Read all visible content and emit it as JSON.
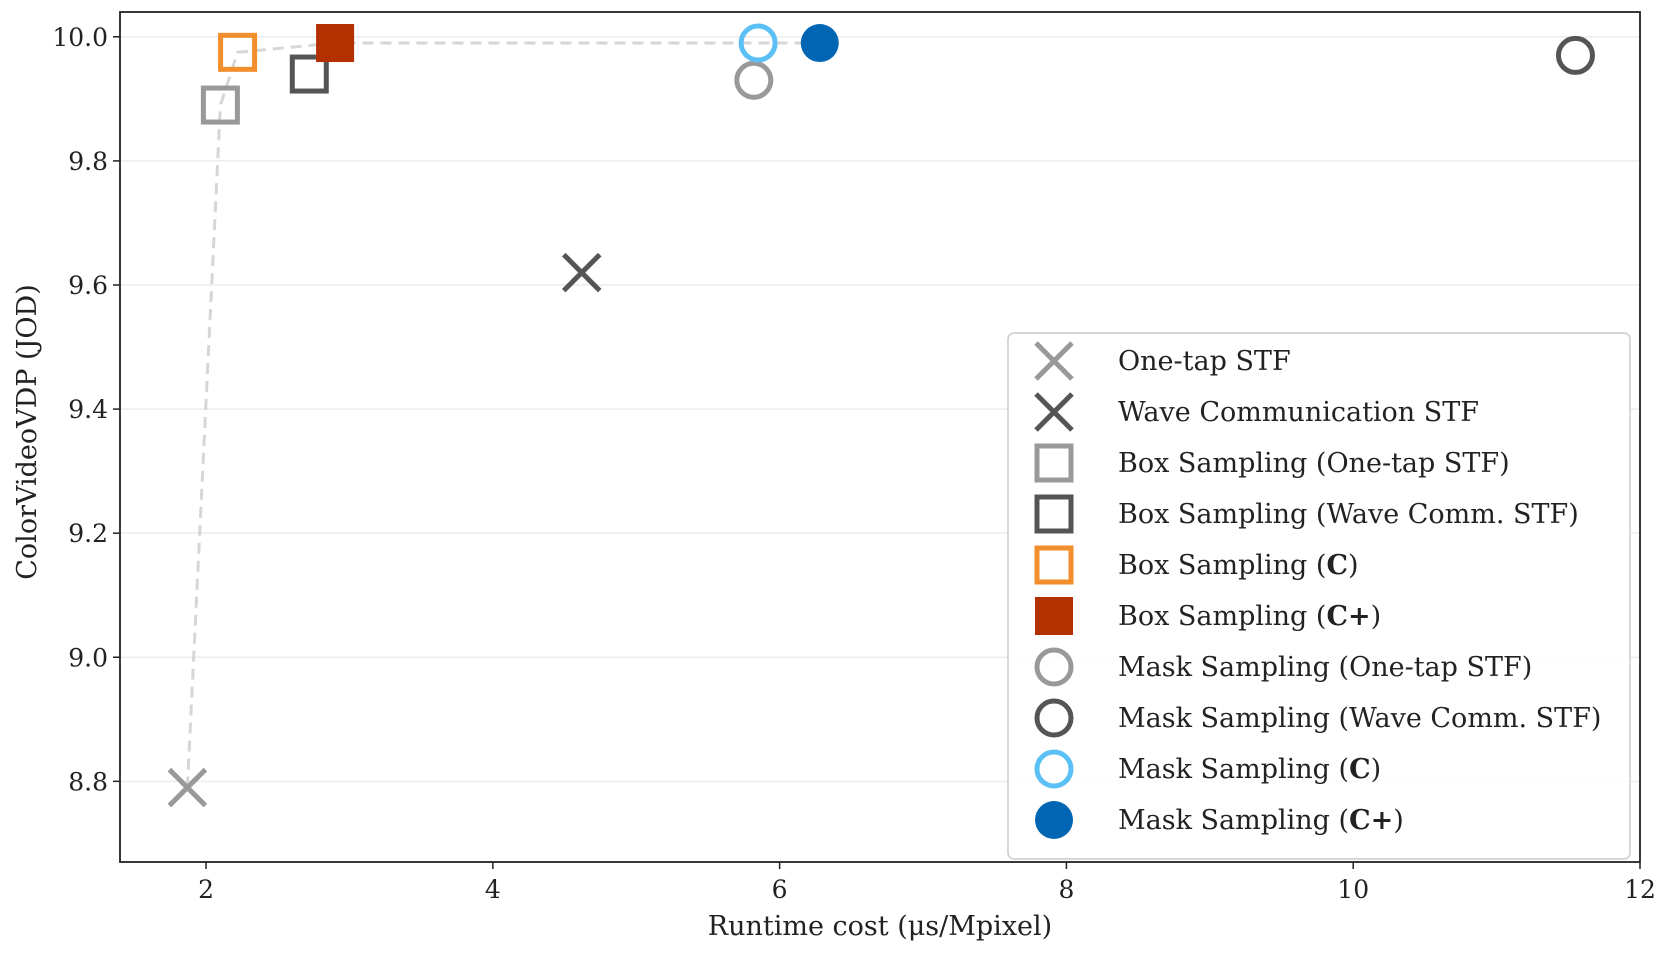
{
  "chart_data": {
    "type": "scatter",
    "title": "",
    "xlabel": "Runtime cost (μs/Mpixel)",
    "ylabel": "ColorVideoVDP (JOD)",
    "xlim": [
      1.4,
      12.0
    ],
    "ylim": [
      8.67,
      10.04
    ],
    "xticks": [
      2,
      4,
      6,
      8,
      10,
      12
    ],
    "yticks": [
      8.8,
      9.0,
      9.2,
      9.4,
      9.6,
      9.8,
      10.0
    ],
    "xtick_labels": [
      "2",
      "4",
      "6",
      "8",
      "10",
      "12"
    ],
    "ytick_labels": [
      "8.8",
      "9.0",
      "9.2",
      "9.4",
      "9.6",
      "9.8",
      "10.0"
    ],
    "grid": true,
    "legend_position": "lower-right",
    "pareto_front": [
      [
        1.87,
        8.79
      ],
      [
        2.1,
        9.89
      ],
      [
        2.22,
        9.975
      ],
      [
        2.9,
        9.99
      ],
      [
        5.85,
        9.99
      ],
      [
        6.28,
        9.99
      ]
    ],
    "series": [
      {
        "name": "One-tap STF",
        "prefix": "One-tap STF",
        "bold": "",
        "suffix": "",
        "marker": "x",
        "color": "#999999",
        "filled": false,
        "x": 1.87,
        "y": 8.79
      },
      {
        "name": "Wave Communication STF",
        "prefix": "Wave Communication STF",
        "bold": "",
        "suffix": "",
        "marker": "x",
        "color": "#555555",
        "filled": false,
        "x": 4.62,
        "y": 9.62
      },
      {
        "name": "Box Sampling (One-tap STF)",
        "prefix": "Box Sampling (One-tap STF)",
        "bold": "",
        "suffix": "",
        "marker": "square",
        "color": "#999999",
        "filled": false,
        "x": 2.1,
        "y": 9.89
      },
      {
        "name": "Box Sampling (Wave Comm. STF)",
        "prefix": "Box Sampling (Wave Comm. STF)",
        "bold": "",
        "suffix": "",
        "marker": "square",
        "color": "#555555",
        "filled": false,
        "x": 2.72,
        "y": 9.94
      },
      {
        "name": "Box Sampling (C)",
        "prefix": "Box Sampling (",
        "bold": "C",
        "suffix": ")",
        "marker": "square",
        "color": "#f28e2b",
        "filled": false,
        "x": 2.22,
        "y": 9.975
      },
      {
        "name": "Box Sampling (C+)",
        "prefix": "Box Sampling (",
        "bold": "C+",
        "suffix": ")",
        "marker": "square",
        "color": "#b33000",
        "filled": true,
        "x": 2.9,
        "y": 9.99
      },
      {
        "name": "Mask Sampling (One-tap STF)",
        "prefix": "Mask Sampling (One-tap STF)",
        "bold": "",
        "suffix": "",
        "marker": "circle",
        "color": "#999999",
        "filled": false,
        "x": 5.82,
        "y": 9.93
      },
      {
        "name": "Mask Sampling (Wave Comm. STF)",
        "prefix": "Mask Sampling (Wave Comm. STF)",
        "bold": "",
        "suffix": "",
        "marker": "circle",
        "color": "#555555",
        "filled": false,
        "x": 11.55,
        "y": 9.97
      },
      {
        "name": "Mask Sampling (C)",
        "prefix": "Mask Sampling (",
        "bold": "C",
        "suffix": ")",
        "marker": "circle",
        "color": "#5bc0f5",
        "filled": false,
        "x": 5.85,
        "y": 9.99
      },
      {
        "name": "Mask Sampling (C+)",
        "prefix": "Mask Sampling (",
        "bold": "C+",
        "suffix": ")",
        "marker": "circle",
        "color": "#0065b3",
        "filled": true,
        "x": 6.28,
        "y": 9.99
      }
    ]
  }
}
